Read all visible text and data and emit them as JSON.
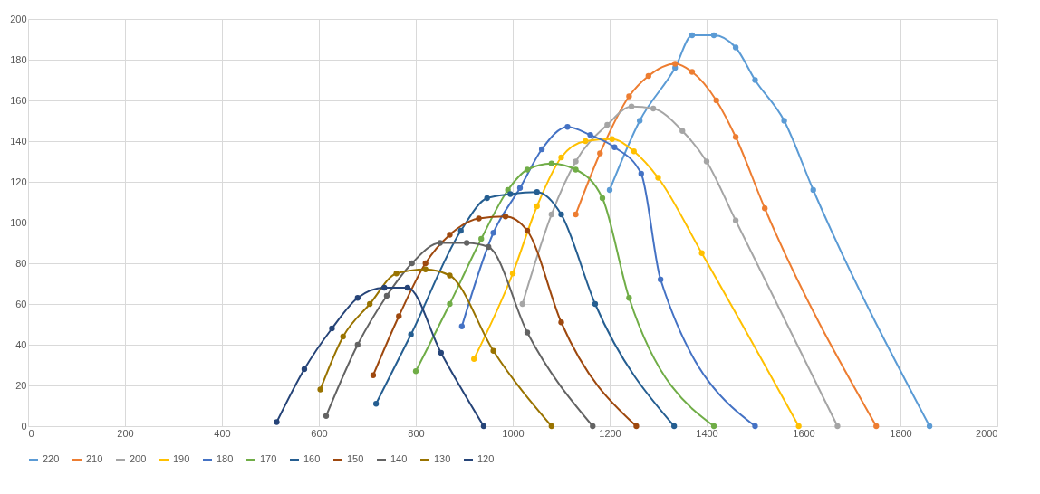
{
  "chart_data": {
    "type": "line",
    "xlim": [
      0,
      2000
    ],
    "xticks": [
      0,
      200,
      400,
      600,
      800,
      1000,
      1200,
      1400,
      1600,
      1800,
      2000
    ],
    "ylim": [
      0,
      200
    ],
    "yticks": [
      0,
      20,
      40,
      60,
      80,
      100,
      120,
      140,
      160,
      180,
      200
    ],
    "grid": true,
    "legend": "bottom",
    "marker": "circle",
    "line_style": "solid",
    "series": [
      {
        "name": "220",
        "color": "#5b9bd5",
        "x": [
          1200,
          1262,
          1335,
          1370,
          1415,
          1460,
          1500,
          1560,
          1620,
          1860
        ],
        "values": [
          116,
          150,
          176,
          192,
          192,
          186,
          170,
          150,
          116,
          0
        ]
      },
      {
        "name": "210",
        "color": "#ed7d31",
        "x": [
          1130,
          1180,
          1240,
          1280,
          1335,
          1370,
          1420,
          1460,
          1520,
          1750
        ],
        "values": [
          104,
          134,
          162,
          172,
          178,
          174,
          160,
          142,
          107,
          0
        ]
      },
      {
        "name": "200",
        "color": "#a5a5a5",
        "x": [
          1020,
          1080,
          1130,
          1195,
          1245,
          1290,
          1350,
          1400,
          1460,
          1670
        ],
        "values": [
          60,
          104,
          130,
          148,
          157,
          156,
          145,
          130,
          101,
          0
        ]
      },
      {
        "name": "190",
        "color": "#ffc000",
        "x": [
          920,
          1000,
          1050,
          1100,
          1150,
          1205,
          1250,
          1300,
          1390,
          1590
        ],
        "values": [
          33,
          75,
          108,
          132,
          140,
          141,
          135,
          122,
          85,
          0
        ]
      },
      {
        "name": "180",
        "color": "#4472c4",
        "x": [
          895,
          960,
          1015,
          1060,
          1113,
          1160,
          1210,
          1265,
          1305,
          1500
        ],
        "values": [
          49,
          95,
          117,
          136,
          147,
          143,
          137,
          124,
          72,
          0
        ]
      },
      {
        "name": "170",
        "color": "#70ad47",
        "x": [
          800,
          870,
          935,
          990,
          1030,
          1080,
          1130,
          1185,
          1240,
          1415
        ],
        "values": [
          27,
          60,
          92,
          116,
          126,
          129,
          126,
          112,
          63,
          0
        ]
      },
      {
        "name": "160",
        "color": "#255e91",
        "x": [
          718,
          790,
          893,
          947,
          995,
          1050,
          1100,
          1170,
          1333
        ],
        "values": [
          11,
          45,
          96,
          112,
          114,
          115,
          104,
          60,
          0
        ]
      },
      {
        "name": "150",
        "color": "#9e480e",
        "x": [
          712,
          765,
          820,
          870,
          930,
          985,
          1030,
          1100,
          1255
        ],
        "values": [
          25,
          54,
          80,
          94,
          102,
          103,
          96,
          51,
          0
        ]
      },
      {
        "name": "140",
        "color": "#636363",
        "x": [
          615,
          680,
          740,
          792,
          850,
          905,
          950,
          1030,
          1165
        ],
        "values": [
          5,
          40,
          64,
          80,
          90,
          90,
          88,
          46,
          0
        ]
      },
      {
        "name": "130",
        "color": "#997300",
        "x": [
          603,
          650,
          705,
          760,
          820,
          870,
          960,
          1080
        ],
        "values": [
          18,
          44,
          60,
          75,
          77,
          74,
          37,
          0
        ]
      },
      {
        "name": "120",
        "color": "#264478",
        "x": [
          513,
          570,
          627,
          680,
          735,
          783,
          852,
          940
        ],
        "values": [
          2,
          28,
          48,
          63,
          68,
          68,
          36,
          0
        ]
      }
    ]
  }
}
